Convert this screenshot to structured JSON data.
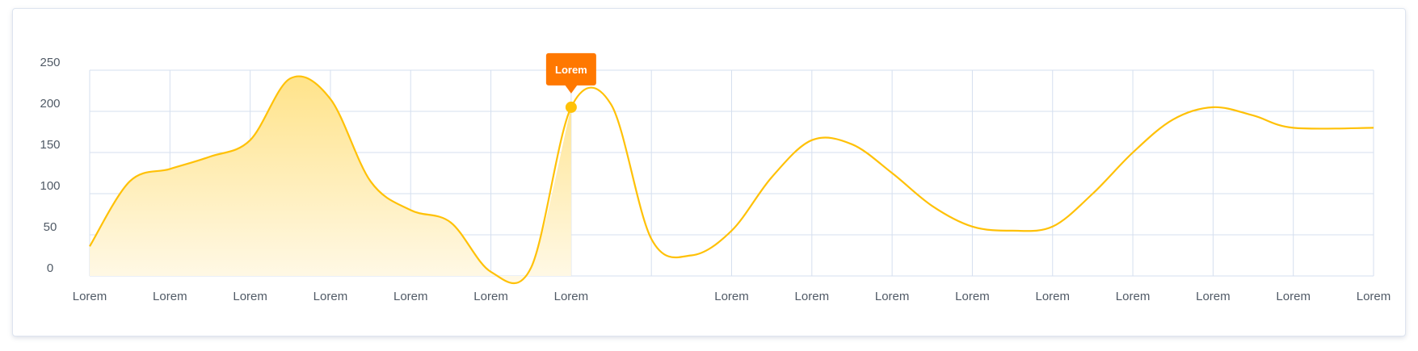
{
  "chart_data": {
    "type": "area",
    "categories": [
      "Lorem",
      "Lorem",
      "Lorem",
      "Lorem",
      "Lorem",
      "Lorem",
      "Lorem",
      "",
      "Lorem",
      "Lorem",
      "Lorem",
      "Lorem",
      "Lorem",
      "Lorem",
      "Lorem",
      "Lorem",
      "Lorem"
    ],
    "yticks": [
      0,
      50,
      100,
      150,
      200,
      250
    ],
    "ylim": [
      0,
      250
    ],
    "xlim": [
      0,
      16
    ],
    "series": [
      {
        "points": [
          [
            0,
            36
          ],
          [
            0.5,
            115
          ],
          [
            1,
            130
          ],
          [
            1.5,
            145
          ],
          [
            2,
            165
          ],
          [
            2.5,
            240
          ],
          [
            3,
            215
          ],
          [
            3.5,
            115
          ],
          [
            4,
            80
          ],
          [
            4.5,
            65
          ],
          [
            5,
            5
          ],
          [
            5.5,
            10
          ],
          [
            6,
            205
          ],
          [
            6.5,
            208
          ],
          [
            7,
            45
          ],
          [
            7.5,
            25
          ],
          [
            8,
            55
          ],
          [
            8.5,
            120
          ],
          [
            9,
            165
          ],
          [
            9.5,
            160
          ],
          [
            10,
            125
          ],
          [
            10.5,
            85
          ],
          [
            11,
            60
          ],
          [
            11.5,
            55
          ],
          [
            12,
            60
          ],
          [
            12.5,
            100
          ],
          [
            13,
            150
          ],
          [
            13.5,
            190
          ],
          [
            14,
            205
          ],
          [
            14.5,
            195
          ],
          [
            15,
            180
          ],
          [
            16,
            180
          ]
        ]
      }
    ],
    "highlight": {
      "x": 6,
      "y": 205,
      "label": "Lorem"
    },
    "shaded_x_range": [
      0,
      6
    ],
    "grid": true,
    "colors": {
      "line": "#FFC107",
      "fill_top": "#FFE38A",
      "fill_bottom": "#FFF9E8",
      "tooltip": "#FF7800",
      "grid": "#D5DFEF"
    }
  }
}
